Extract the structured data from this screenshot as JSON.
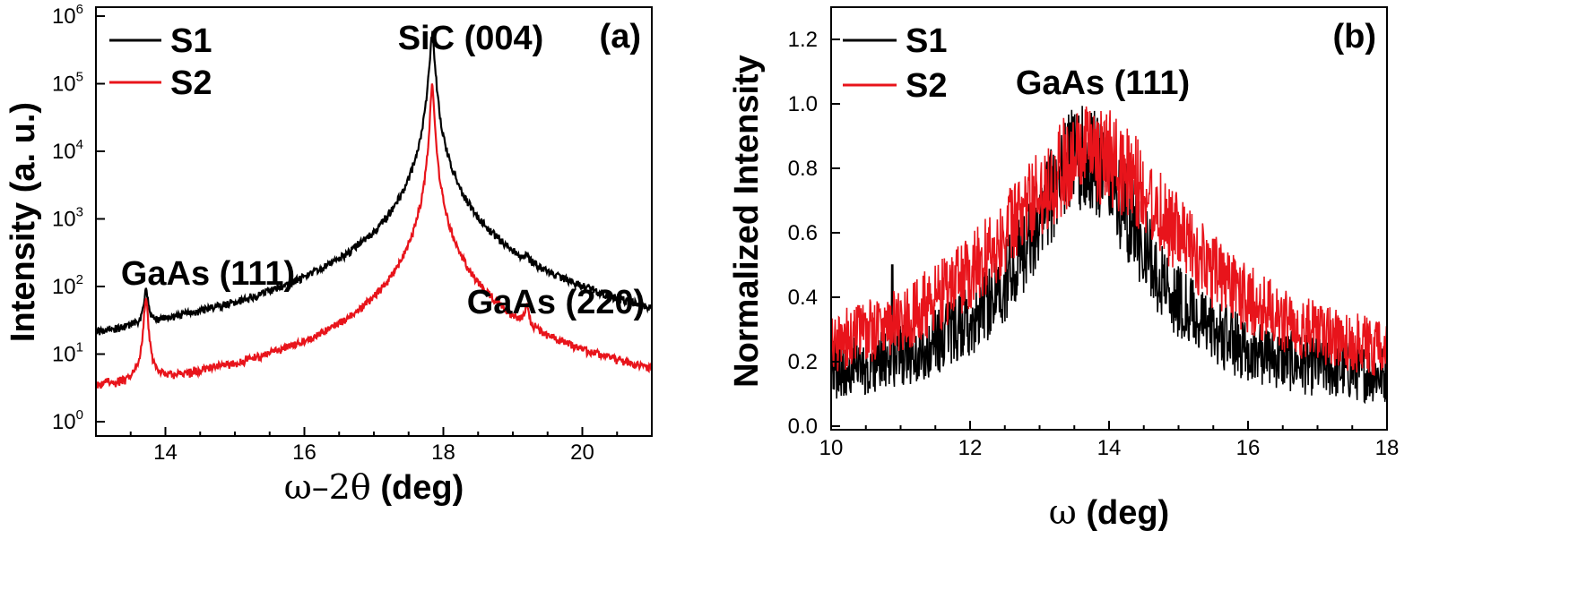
{
  "chart_data": [
    {
      "type": "line",
      "panel_label": "(a)",
      "xlabel_symbol": "ω–2θ",
      "xlabel_unit": " (deg)",
      "ylabel": "Intensity (a. u.)",
      "yscale": "log",
      "xlim": [
        13,
        21
      ],
      "ylim": [
        1,
        1000000
      ],
      "x_ticks": [
        "14",
        "16",
        "18",
        "20"
      ],
      "y_ticks": [
        {
          "base": "10",
          "exp": "0"
        },
        {
          "base": "10",
          "exp": "1"
        },
        {
          "base": "10",
          "exp": "2"
        },
        {
          "base": "10",
          "exp": "3"
        },
        {
          "base": "10",
          "exp": "4"
        },
        {
          "base": "10",
          "exp": "5"
        },
        {
          "base": "10",
          "exp": "6"
        }
      ],
      "annotations": [
        {
          "text": "GaAs (111)",
          "x": 13.7,
          "y": 300
        },
        {
          "text": "SiC (004)",
          "x": 17.85,
          "y": 1200000
        },
        {
          "text": "GaAs (220)",
          "x": 19.2,
          "y": 100
        }
      ],
      "series": [
        {
          "name": "S1",
          "color": "#000000",
          "baseline": 1.5,
          "peaks": [
            {
              "x": 13.72,
              "height": 65,
              "width": 0.05
            },
            {
              "x": 17.84,
              "height": 600000,
              "width": 0.05
            },
            {
              "x": 19.2,
              "height": 36,
              "width": 0.06
            }
          ]
        },
        {
          "name": "S2",
          "color": "#e8141b",
          "baseline": 1.1,
          "peaks": [
            {
              "x": 13.72,
              "height": 70,
              "width": 0.045
            },
            {
              "x": 17.84,
              "height": 100000,
              "width": 0.04
            },
            {
              "x": 19.2,
              "height": 28,
              "width": 0.05
            }
          ]
        }
      ]
    },
    {
      "type": "line",
      "panel_label": "(b)",
      "xlabel_symbol": "ω",
      "xlabel_unit": " (deg)",
      "ylabel": "Normalized Intensity",
      "yscale": "linear",
      "xlim": [
        10,
        18
      ],
      "ylim": [
        0,
        1.3
      ],
      "x_ticks": [
        "10",
        "12",
        "14",
        "16",
        "18"
      ],
      "y_ticks": [
        "0.0",
        "0.2",
        "0.4",
        "0.6",
        "0.8",
        "1.0",
        "1.2"
      ],
      "annotations": [
        {
          "text": "GaAs (111)",
          "x": 13.6,
          "y": 1.05
        }
      ],
      "series": [
        {
          "name": "S1",
          "color": "#000000",
          "center": 13.65,
          "peak": 0.72,
          "width": 1.05,
          "floor": 0.12,
          "noise": 0.12,
          "max": 1.0
        },
        {
          "name": "S2",
          "color": "#e8141b",
          "center": 13.75,
          "peak": 0.7,
          "width": 1.7,
          "floor": 0.14,
          "noise": 0.11,
          "max": 1.0
        }
      ]
    }
  ]
}
